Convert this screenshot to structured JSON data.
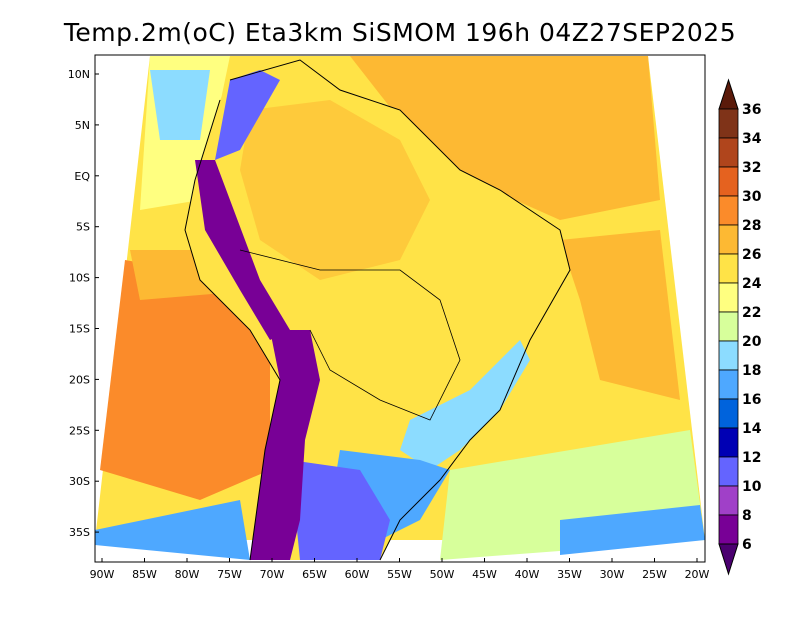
{
  "title": "Temp.2m(oC) Eta3km SiSMOM 196h 04Z27SEP2025",
  "map": {
    "lat_labels": [
      "10N",
      "5N",
      "EQ",
      "5S",
      "10S",
      "15S",
      "20S",
      "25S",
      "30S",
      "35S"
    ],
    "lon_labels": [
      "90W",
      "85W",
      "80W",
      "75W",
      "70W",
      "65W",
      "60W",
      "55W",
      "50W",
      "45W",
      "40W",
      "35W",
      "30W",
      "25W",
      "20W"
    ]
  },
  "colorbar": {
    "labels": [
      "36",
      "34",
      "32",
      "30",
      "28",
      "26",
      "24",
      "22",
      "20",
      "18",
      "16",
      "14",
      "12",
      "10",
      "8",
      "6"
    ],
    "colors": [
      "#5a1a0a",
      "#7f3318",
      "#b0451c",
      "#e5621f",
      "#fb8b2a",
      "#fdb933",
      "#ffe347",
      "#ffff80",
      "#d7ff9b",
      "#8cdcff",
      "#4ea8ff",
      "#0063dc",
      "#0000b4",
      "#6464ff",
      "#a040c8",
      "#780096",
      "#4b0070"
    ]
  }
}
